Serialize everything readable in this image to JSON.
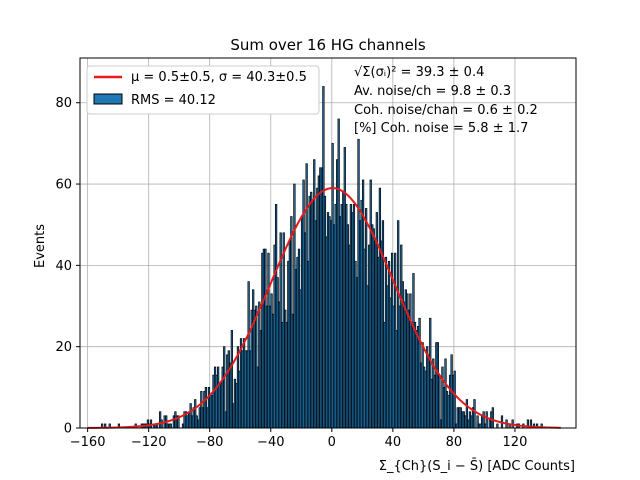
{
  "chart_data": {
    "type": "bar",
    "title": "Sum over 16 HG channels",
    "xlabel": "Σ_{Ch}(S_i − S̄) [ADC Counts]",
    "ylabel": "Events",
    "xlim": [
      -165,
      160
    ],
    "ylim": [
      0,
      91
    ],
    "x_ticks": [
      "−160",
      "−120",
      "−80",
      "−40",
      "0",
      "40",
      "80",
      "120"
    ],
    "y_ticks": [
      "0",
      "20",
      "40",
      "60",
      "80"
    ],
    "grid": true,
    "legend_position": "top-left",
    "legend": [
      {
        "label": "μ = 0.5±0.5, σ = 40.3±0.5",
        "kind": "line",
        "color": "#e41a1c"
      },
      {
        "label": "RMS = 40.12",
        "kind": "bar",
        "color": "#1f77b4"
      }
    ],
    "annotations": [
      "√Σ(σᵢ)² = 39.3 ± 0.4",
      "Av. noise/ch  = 9.8 ± 0.3",
      "Coh. noise/chan  = 0.6 ± 0.2",
      "[%] Coh. noise  = 5.8 ± 1.7"
    ],
    "fit": {
      "mu": 0.5,
      "sigma": 40.3,
      "amplitude": 59,
      "color": "#e41a1c"
    },
    "histogram": {
      "bin_start": -152,
      "bin_width": 1,
      "bar_color": "#1f77b4",
      "edge_color": "#000000"
    }
  }
}
